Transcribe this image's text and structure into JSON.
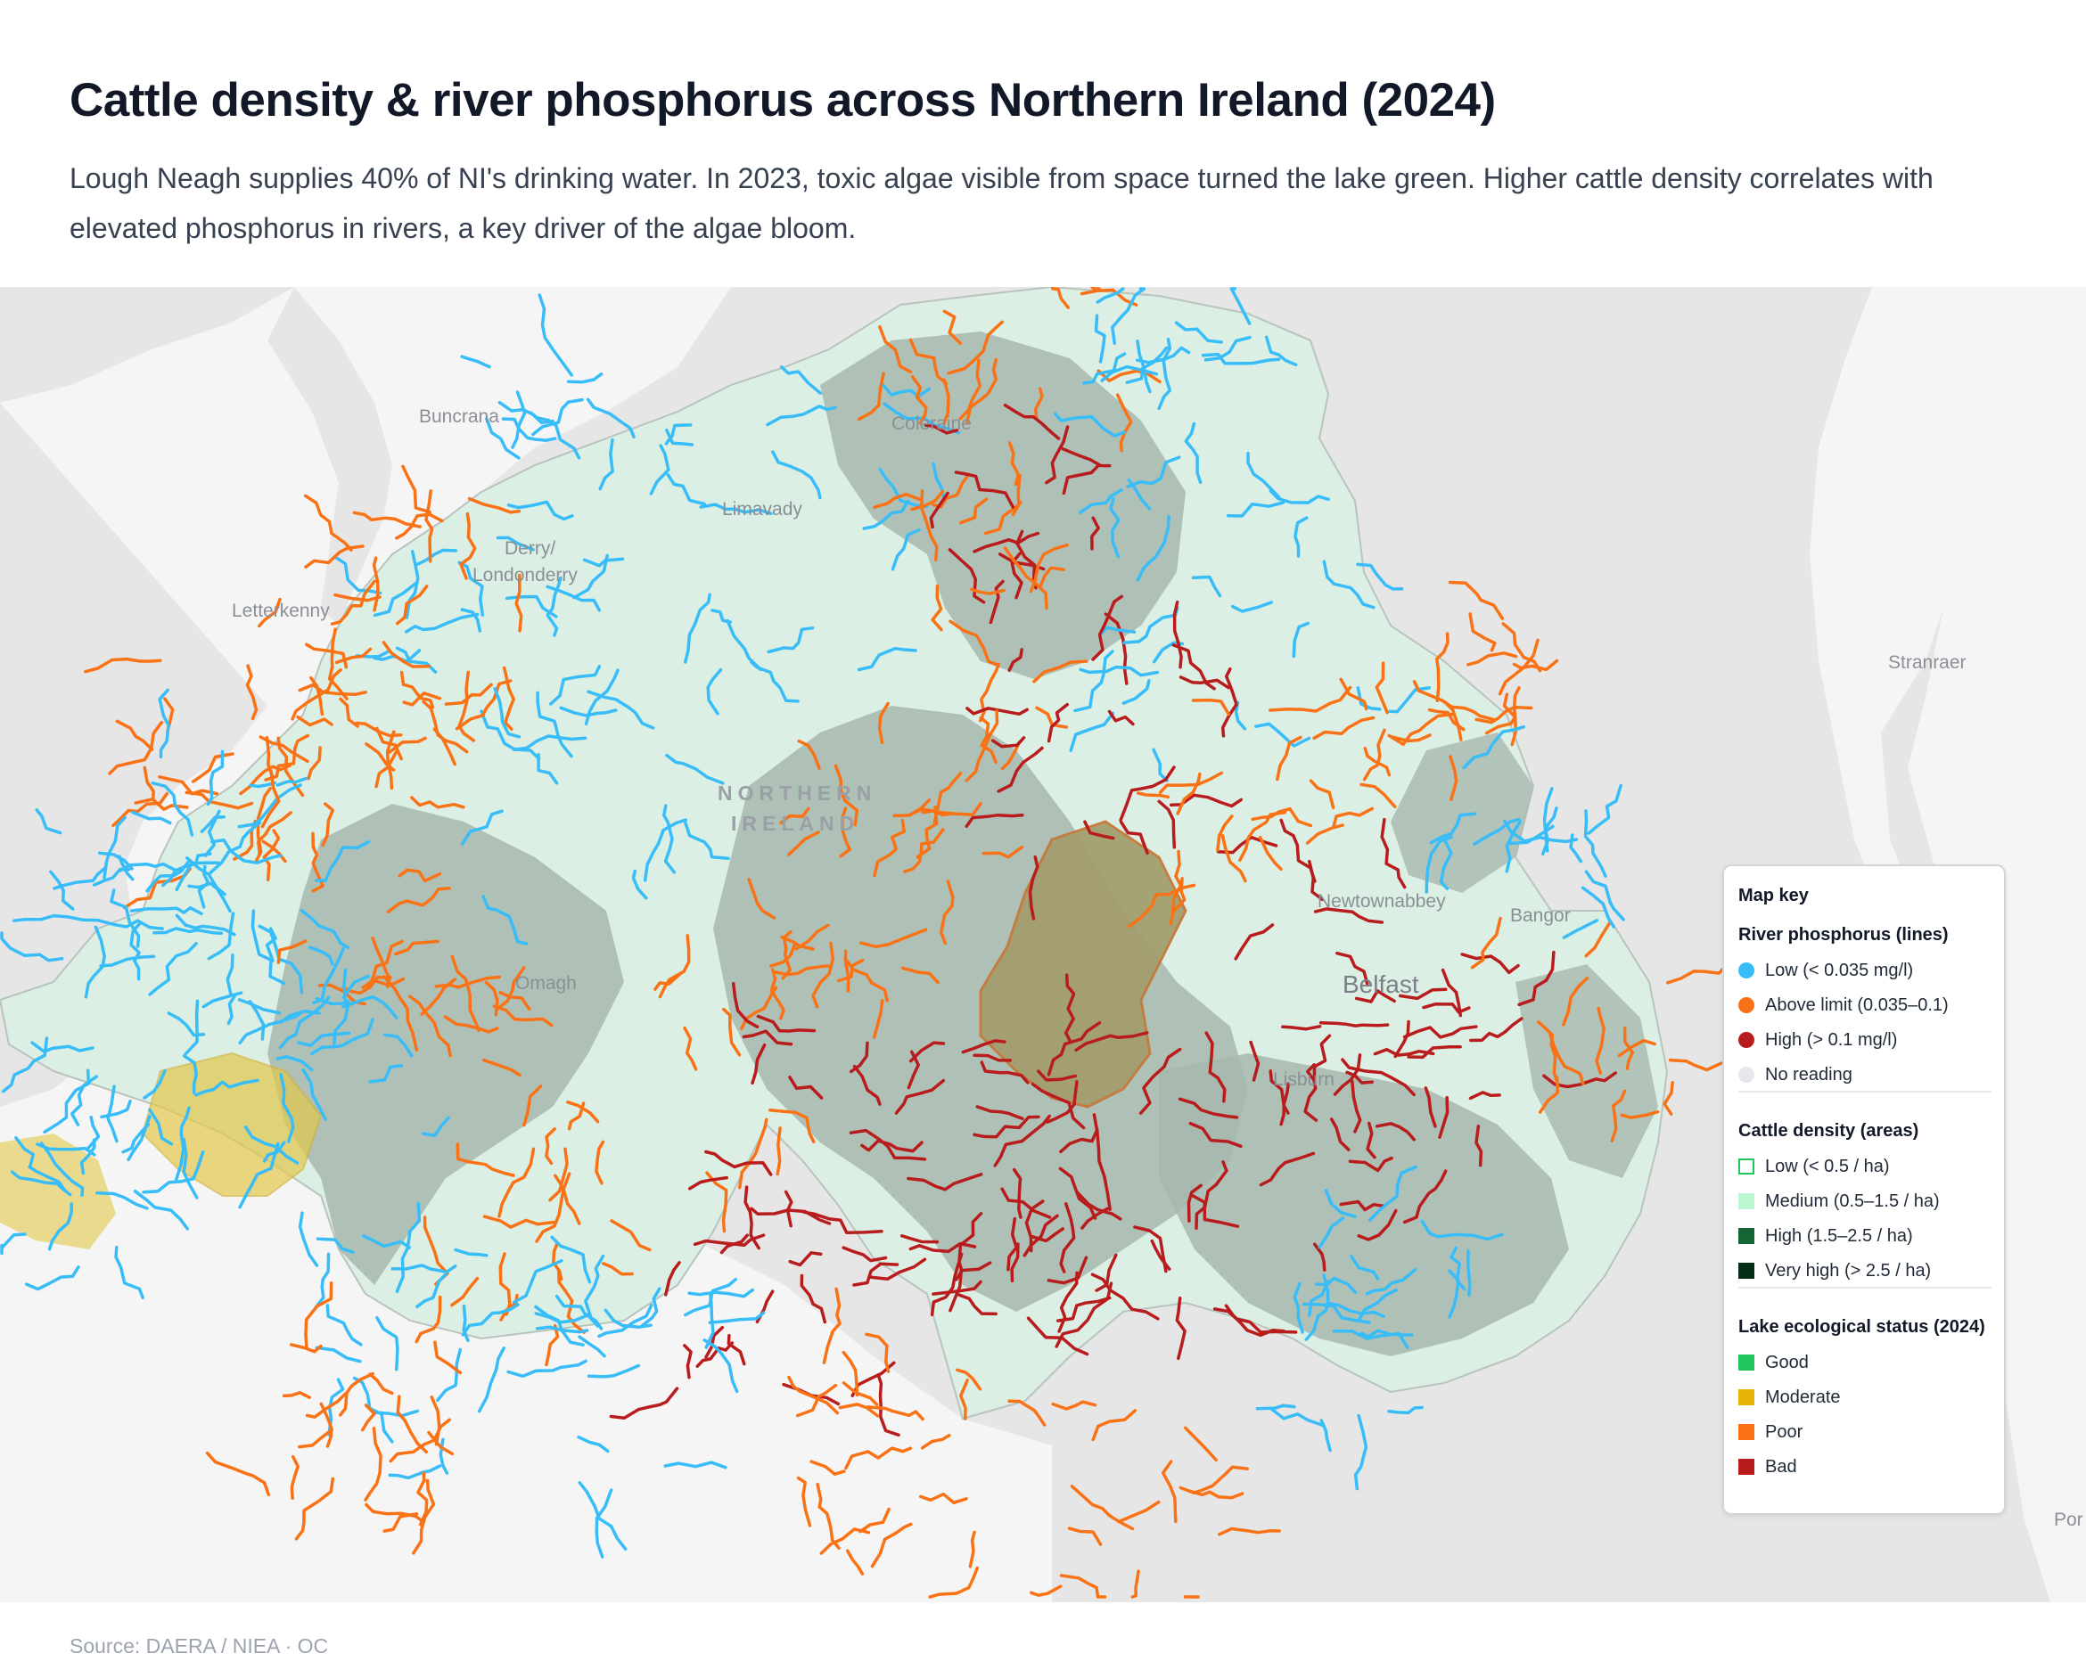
{
  "header": {
    "title": "Cattle density & river phosphorus across Northern Ireland (2024)",
    "subtitle": "Lough Neagh supplies 40% of NI's drinking water. In 2023, toxic algae visible from space turned the lake green. Higher cattle density correlates with elevated phosphorus in rivers, a key driver of the algae bloom."
  },
  "map": {
    "place_labels": {
      "buncrana": "Buncrana",
      "limavady": "Limavady",
      "coleraine": "Coleraine",
      "derry": "Derry/",
      "londonderry": "Londonderry",
      "letterkenny": "Letterkenny",
      "stranraer": "Stranraer",
      "newtownabbey": "Newtownabbey",
      "bangor": "Bangor",
      "belfast": "Belfast",
      "lisburn": "Lisburn",
      "omagh": "Omagh",
      "edge": "Por",
      "country_line1": "NORTHERN",
      "country_line2": "IRELAND"
    },
    "colors": {
      "sea": "#e6e6e6",
      "land": "#f7f7f8",
      "ni_base": "#dff1e8",
      "cattle_low": "#e8f5ee",
      "cattle_medium": "#c9e4d4",
      "cattle_high_overlay": "#9fb5aa",
      "lough_neagh": "#a39e6f",
      "lough_erne": "#e3c84a",
      "river_low": "#38bdf8",
      "river_above": "#f97316",
      "river_high": "#b91c1c"
    }
  },
  "legend": {
    "title": "Map key",
    "river_section": {
      "title": "River phosphorus (lines)",
      "items": [
        {
          "label": "Low (< 0.035 mg/l)",
          "color": "#38bdf8"
        },
        {
          "label": "Above limit (0.035–0.1)",
          "color": "#f97316"
        },
        {
          "label": "High (> 0.1 mg/l)",
          "color": "#b91c1c"
        },
        {
          "label": "No reading",
          "color": "#e5e7eb"
        }
      ]
    },
    "cattle_section": {
      "title": "Cattle density (areas)",
      "items": [
        {
          "label": "Low (< 0.5 / ha)",
          "color": "#ffffff",
          "border": "#22c55e"
        },
        {
          "label": "Medium (0.5–1.5 / ha)",
          "color": "#bbf7d0"
        },
        {
          "label": "High (1.5–2.5 / ha)",
          "color": "#166534"
        },
        {
          "label": "Very high (> 2.5 / ha)",
          "color": "#052e16"
        }
      ]
    },
    "lake_section": {
      "title": "Lake ecological status (2024)",
      "items": [
        {
          "label": "Good",
          "color": "#22c55e"
        },
        {
          "label": "Moderate",
          "color": "#eab308"
        },
        {
          "label": "Poor",
          "color": "#f97316"
        },
        {
          "label": "Bad",
          "color": "#b91c1c"
        }
      ]
    }
  },
  "footer": {
    "source": "Source: DAERA / NIEA  ·  OC"
  }
}
